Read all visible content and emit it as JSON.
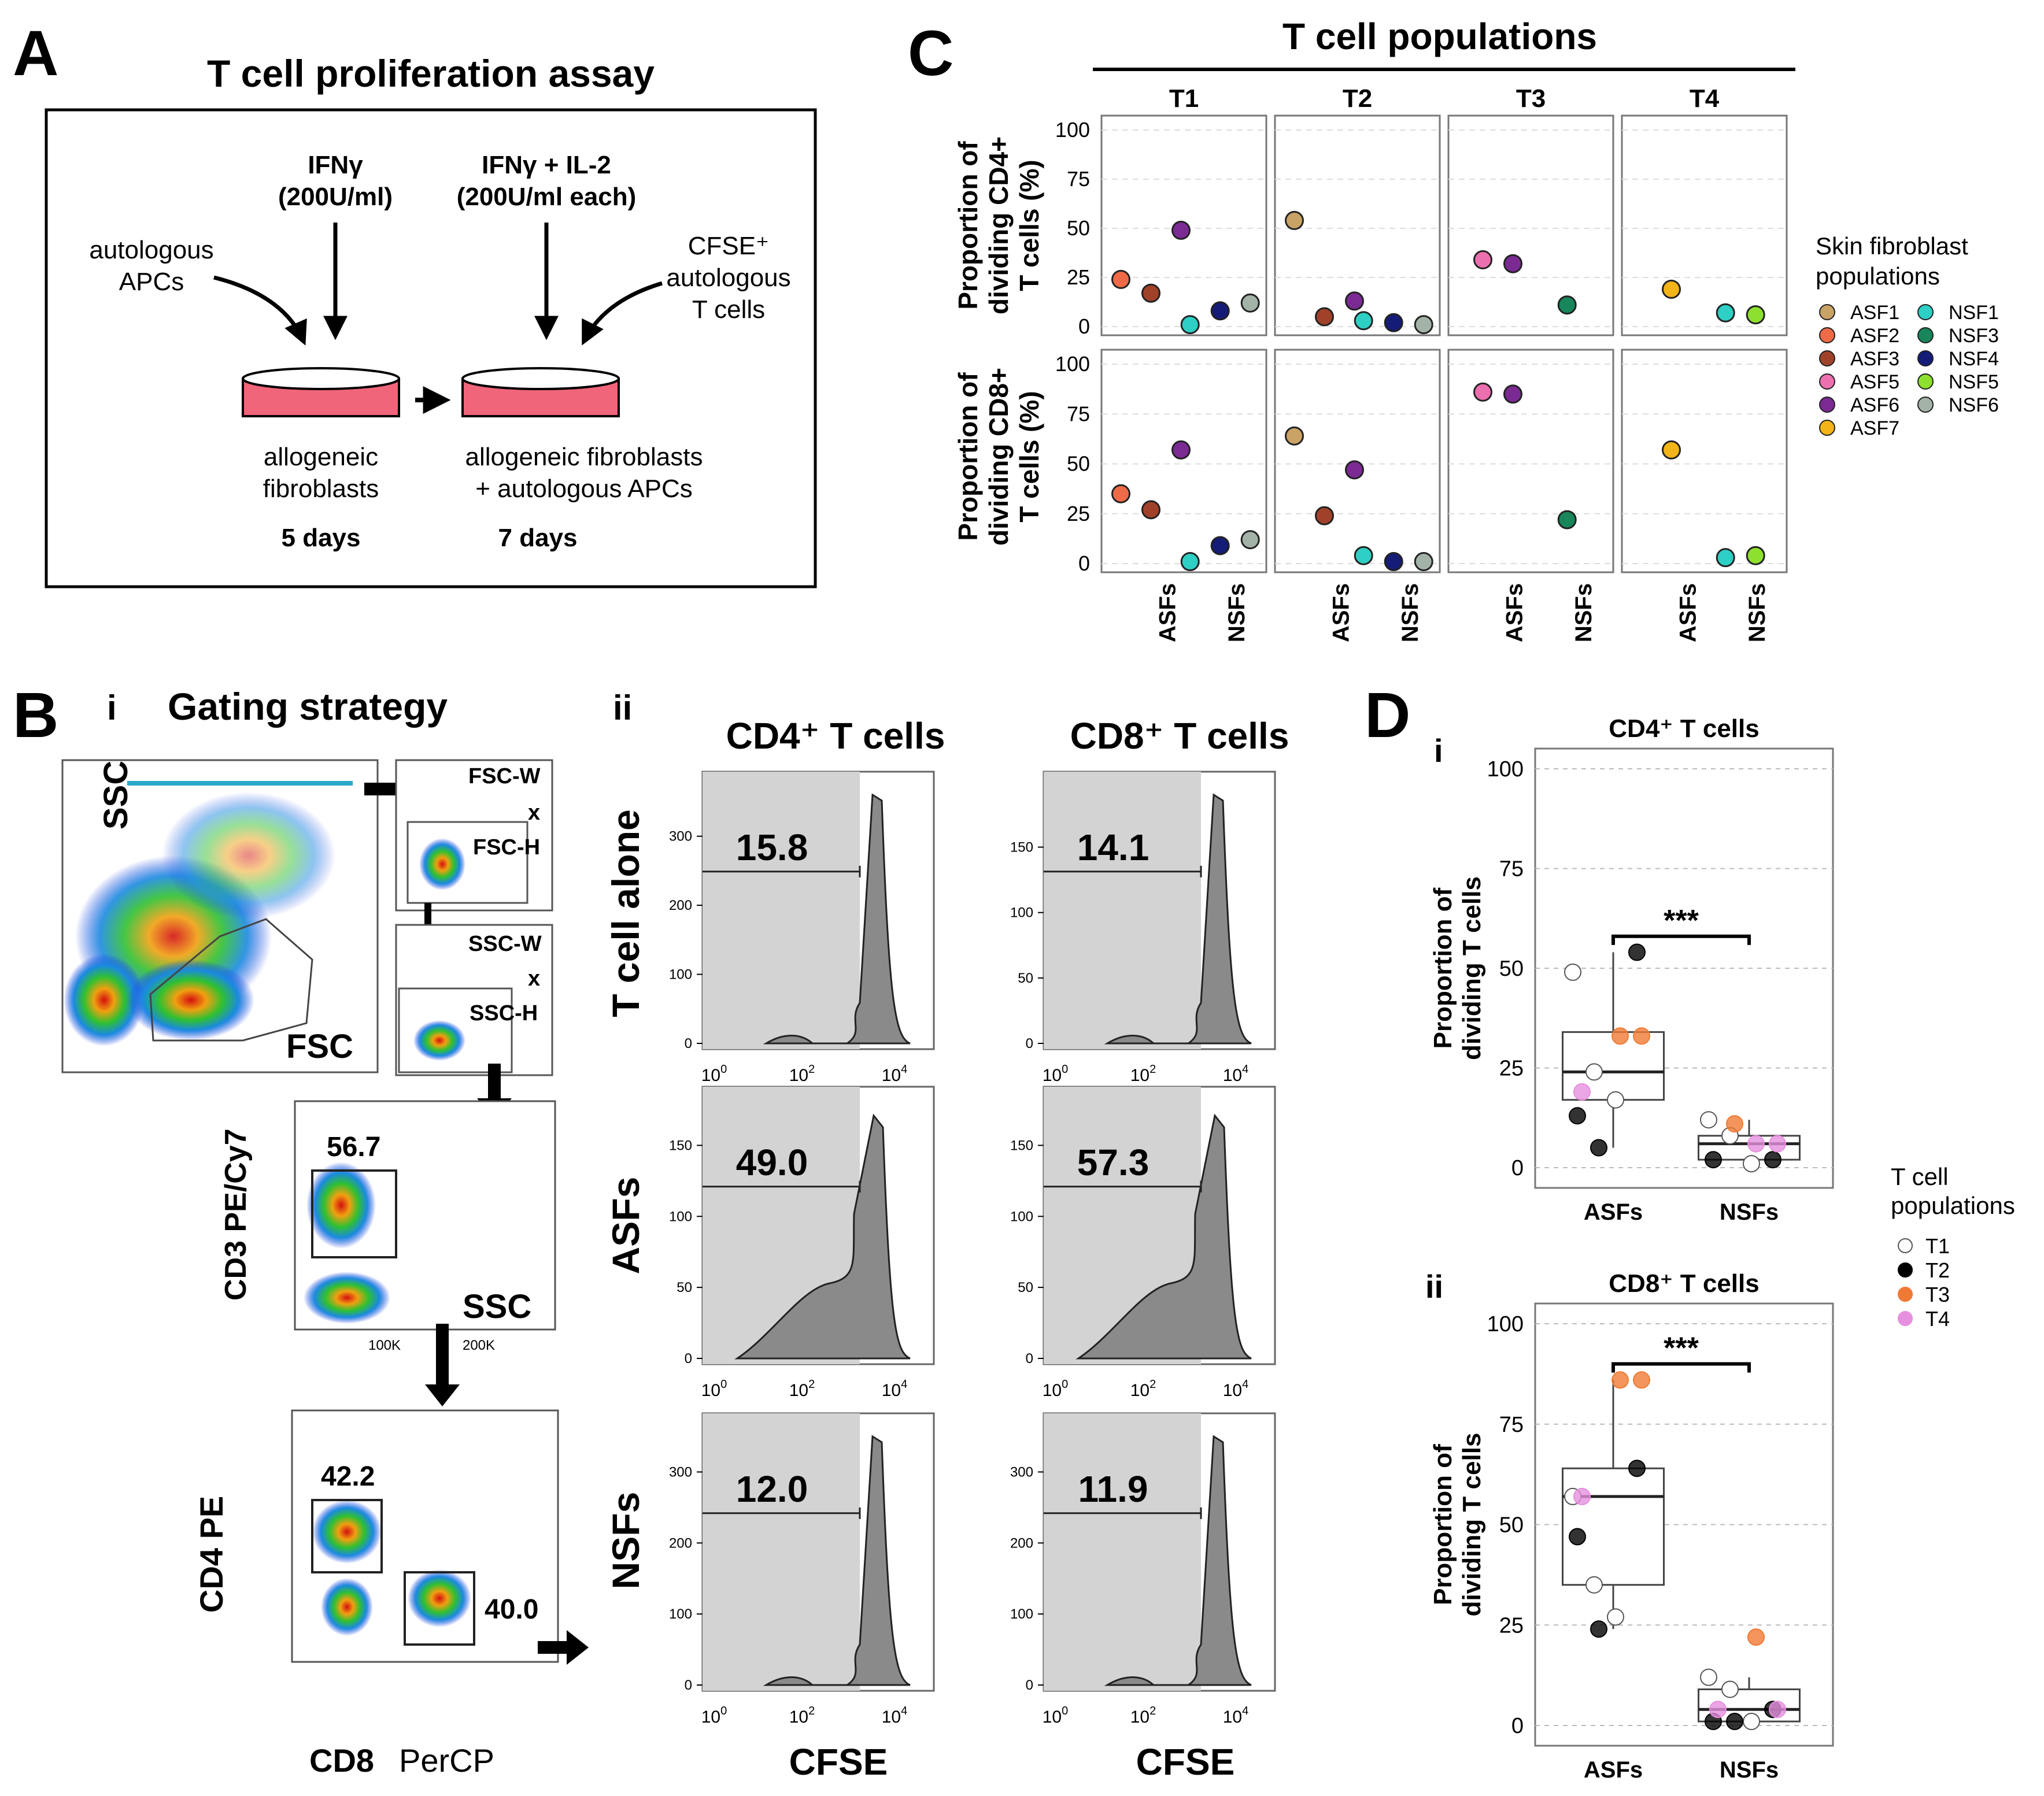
{
  "panelA": {
    "letter": "A",
    "title": "T cell proliferation assay",
    "ifng_line1": "IFNγ",
    "ifng_line2": "(200U/ml)",
    "ifng_il2_line1": "IFNγ + IL-2",
    "ifng_il2_line2": "(200U/ml each)",
    "apcs_line1": "autologous",
    "apcs_line2": "APCs",
    "cfse_line1": "CFSE⁺",
    "cfse_line2": "autologous",
    "cfse_line3": "T cells",
    "dish1_line1": "allogeneic",
    "dish1_line2": "fibroblasts",
    "dish2_line1": "allogeneic fibroblasts",
    "dish2_line2": "+ autologous APCs",
    "days1": "5 days",
    "days2": "7 days"
  },
  "panelB": {
    "letter": "B",
    "sub_i": "i",
    "sub_ii": "ii",
    "gating_title": "Gating strategy",
    "ssc": "SSC",
    "fsc": "FSC",
    "fscw": "FSC-W",
    "fsch": "FSC-H",
    "sscw": "SSC-W",
    "ssch": "SSC-H",
    "x": "x",
    "cd3_label": "CD3 PE/Cy7",
    "cd3_gate": "56.7",
    "ssc_axis": "SSC",
    "k100": "100K",
    "k200": "200K",
    "cd4_label": "CD4 PE",
    "cd8_label_bold": "CD8",
    "cd8_label_rest": "PerCP",
    "cd4_gate": "42.2",
    "cd8_gate": "40.0",
    "col_cd4": "CD4⁺ T cells",
    "col_cd8": "CD8⁺ T cells",
    "row_alone": "T cell alone",
    "row_asfs": "ASFs",
    "row_nsfs": "NSFs",
    "cfse": "CFSE",
    "hist_values": [
      "15.8",
      "14.1",
      "49.0",
      "57.3",
      "12.0",
      "11.9"
    ]
  },
  "panelC": {
    "letter": "C",
    "title": "T cell populations",
    "columns": [
      "T1",
      "T2",
      "T3",
      "T4"
    ],
    "ylab_cd4": [
      "Proportion of",
      "dividing CD4+",
      "T cells (%)"
    ],
    "ylab_cd8": [
      "Proportion of",
      "dividing CD8+",
      "T cells (%)"
    ],
    "xcats": [
      "ASFs",
      "NSFs"
    ],
    "legend_title": [
      "Skin fibroblast",
      "populations"
    ],
    "legend": [
      {
        "name": "ASF1",
        "color": "#c9a266"
      },
      {
        "name": "ASF2",
        "color": "#ef6a47"
      },
      {
        "name": "ASF3",
        "color": "#a0422a"
      },
      {
        "name": "ASF5",
        "color": "#ec6fb0"
      },
      {
        "name": "ASF6",
        "color": "#7b2a94"
      },
      {
        "name": "ASF7",
        "color": "#f2b418"
      },
      {
        "name": "NSF1",
        "color": "#2ecfc4"
      },
      {
        "name": "NSF3",
        "color": "#18855a"
      },
      {
        "name": "NSF4",
        "color": "#141c78"
      },
      {
        "name": "NSF5",
        "color": "#8ee02e"
      },
      {
        "name": "NSF6",
        "color": "#a3b3a8"
      }
    ]
  },
  "panelD": {
    "letter": "D",
    "sub_i": "i",
    "sub_ii": "ii",
    "title_cd4": "CD4⁺ T cells",
    "title_cd8": "CD8⁺ T cells",
    "ylab": [
      "Proportion of",
      "dividing T cells"
    ],
    "sig": "***",
    "xcats": [
      "ASFs",
      "NSFs"
    ],
    "legend_title": [
      "T cell",
      "populations"
    ],
    "legend": [
      {
        "name": "T1",
        "color": "#ffffff"
      },
      {
        "name": "T2",
        "color": "#000000"
      },
      {
        "name": "T3",
        "color": "#f07a35"
      },
      {
        "name": "T4",
        "color": "#e690df"
      }
    ]
  },
  "chart_data": [
    {
      "type": "scatter",
      "title": "T cell populations — Proportion of dividing CD4+ T cells (%)",
      "facets": [
        "T1",
        "T2",
        "T3",
        "T4"
      ],
      "categories": [
        "ASFs",
        "NSFs"
      ],
      "ylim": [
        0,
        100
      ],
      "yticks": [
        0,
        25,
        50,
        75,
        100
      ],
      "points": [
        {
          "facet": "T1",
          "cat": "ASFs",
          "fib": "ASF2",
          "y": 24
        },
        {
          "facet": "T1",
          "cat": "ASFs",
          "fib": "ASF3",
          "y": 17
        },
        {
          "facet": "T1",
          "cat": "ASFs",
          "fib": "ASF6",
          "y": 49
        },
        {
          "facet": "T1",
          "cat": "NSFs",
          "fib": "NSF1",
          "y": 1
        },
        {
          "facet": "T1",
          "cat": "NSFs",
          "fib": "NSF4",
          "y": 8
        },
        {
          "facet": "T1",
          "cat": "NSFs",
          "fib": "NSF6",
          "y": 12
        },
        {
          "facet": "T2",
          "cat": "ASFs",
          "fib": "ASF1",
          "y": 54
        },
        {
          "facet": "T2",
          "cat": "ASFs",
          "fib": "ASF3",
          "y": 5
        },
        {
          "facet": "T2",
          "cat": "ASFs",
          "fib": "ASF6",
          "y": 13
        },
        {
          "facet": "T2",
          "cat": "NSFs",
          "fib": "NSF1",
          "y": 3
        },
        {
          "facet": "T2",
          "cat": "NSFs",
          "fib": "NSF4",
          "y": 2
        },
        {
          "facet": "T2",
          "cat": "NSFs",
          "fib": "NSF6",
          "y": 1
        },
        {
          "facet": "T3",
          "cat": "ASFs",
          "fib": "ASF5",
          "y": 34
        },
        {
          "facet": "T3",
          "cat": "ASFs",
          "fib": "ASF6",
          "y": 32
        },
        {
          "facet": "T3",
          "cat": "NSFs",
          "fib": "NSF3",
          "y": 11
        },
        {
          "facet": "T4",
          "cat": "ASFs",
          "fib": "ASF7",
          "y": 19
        },
        {
          "facet": "T4",
          "cat": "NSFs",
          "fib": "NSF1",
          "y": 7
        },
        {
          "facet": "T4",
          "cat": "NSFs",
          "fib": "NSF5",
          "y": 6
        }
      ]
    },
    {
      "type": "scatter",
      "title": "T cell populations — Proportion of dividing CD8+ T cells (%)",
      "facets": [
        "T1",
        "T2",
        "T3",
        "T4"
      ],
      "categories": [
        "ASFs",
        "NSFs"
      ],
      "ylim": [
        0,
        100
      ],
      "yticks": [
        0,
        25,
        50,
        75,
        100
      ],
      "points": [
        {
          "facet": "T1",
          "cat": "ASFs",
          "fib": "ASF2",
          "y": 35
        },
        {
          "facet": "T1",
          "cat": "ASFs",
          "fib": "ASF3",
          "y": 27
        },
        {
          "facet": "T1",
          "cat": "ASFs",
          "fib": "ASF6",
          "y": 57
        },
        {
          "facet": "T1",
          "cat": "NSFs",
          "fib": "NSF1",
          "y": 1
        },
        {
          "facet": "T1",
          "cat": "NSFs",
          "fib": "NSF4",
          "y": 9
        },
        {
          "facet": "T1",
          "cat": "NSFs",
          "fib": "NSF6",
          "y": 12
        },
        {
          "facet": "T2",
          "cat": "ASFs",
          "fib": "ASF1",
          "y": 64
        },
        {
          "facet": "T2",
          "cat": "ASFs",
          "fib": "ASF3",
          "y": 24
        },
        {
          "facet": "T2",
          "cat": "ASFs",
          "fib": "ASF6",
          "y": 47
        },
        {
          "facet": "T2",
          "cat": "NSFs",
          "fib": "NSF1",
          "y": 4
        },
        {
          "facet": "T2",
          "cat": "NSFs",
          "fib": "NSF4",
          "y": 1
        },
        {
          "facet": "T2",
          "cat": "NSFs",
          "fib": "NSF6",
          "y": 1
        },
        {
          "facet": "T3",
          "cat": "ASFs",
          "fib": "ASF5",
          "y": 86
        },
        {
          "facet": "T3",
          "cat": "ASFs",
          "fib": "ASF6",
          "y": 85
        },
        {
          "facet": "T3",
          "cat": "NSFs",
          "fib": "NSF3",
          "y": 22
        },
        {
          "facet": "T4",
          "cat": "ASFs",
          "fib": "ASF7",
          "y": 57
        },
        {
          "facet": "T4",
          "cat": "NSFs",
          "fib": "NSF1",
          "y": 3
        },
        {
          "facet": "T4",
          "cat": "NSFs",
          "fib": "NSF5",
          "y": 4
        }
      ]
    },
    {
      "type": "box",
      "title": "CD4⁺ T cells",
      "ylabel": "Proportion of dividing T cells",
      "categories": [
        "ASFs",
        "NSFs"
      ],
      "ylim": [
        0,
        100
      ],
      "yticks": [
        0,
        25,
        50,
        75,
        100
      ],
      "boxes": [
        {
          "cat": "ASFs",
          "q1": 17,
          "median": 24,
          "q3": 34,
          "whisker_low": 5,
          "whisker_high": 54
        },
        {
          "cat": "NSFs",
          "q1": 2,
          "median": 6,
          "q3": 8,
          "whisker_low": 1,
          "whisker_high": 12
        }
      ],
      "points": [
        {
          "cat": "ASFs",
          "pop": "T1",
          "y": 49
        },
        {
          "cat": "ASFs",
          "pop": "T1",
          "y": 24
        },
        {
          "cat": "ASFs",
          "pop": "T1",
          "y": 17
        },
        {
          "cat": "ASFs",
          "pop": "T2",
          "y": 54
        },
        {
          "cat": "ASFs",
          "pop": "T2",
          "y": 13
        },
        {
          "cat": "ASFs",
          "pop": "T2",
          "y": 5
        },
        {
          "cat": "ASFs",
          "pop": "T3",
          "y": 33
        },
        {
          "cat": "ASFs",
          "pop": "T3",
          "y": 33
        },
        {
          "cat": "ASFs",
          "pop": "T4",
          "y": 19
        },
        {
          "cat": "NSFs",
          "pop": "T1",
          "y": 12
        },
        {
          "cat": "NSFs",
          "pop": "T1",
          "y": 8
        },
        {
          "cat": "NSFs",
          "pop": "T1",
          "y": 1
        },
        {
          "cat": "NSFs",
          "pop": "T2",
          "y": 2
        },
        {
          "cat": "NSFs",
          "pop": "T2",
          "y": 2
        },
        {
          "cat": "NSFs",
          "pop": "T3",
          "y": 11
        },
        {
          "cat": "NSFs",
          "pop": "T4",
          "y": 6
        },
        {
          "cat": "NSFs",
          "pop": "T4",
          "y": 6
        }
      ],
      "significance": "***"
    },
    {
      "type": "box",
      "title": "CD8⁺ T cells",
      "ylabel": "Proportion of dividing T cells",
      "categories": [
        "ASFs",
        "NSFs"
      ],
      "ylim": [
        0,
        100
      ],
      "yticks": [
        0,
        25,
        50,
        75,
        100
      ],
      "boxes": [
        {
          "cat": "ASFs",
          "q1": 35,
          "median": 57,
          "q3": 64,
          "whisker_low": 24,
          "whisker_high": 86
        },
        {
          "cat": "NSFs",
          "q1": 1,
          "median": 4,
          "q3": 9,
          "whisker_low": 1,
          "whisker_high": 12
        }
      ],
      "points": [
        {
          "cat": "ASFs",
          "pop": "T1",
          "y": 57
        },
        {
          "cat": "ASFs",
          "pop": "T1",
          "y": 35
        },
        {
          "cat": "ASFs",
          "pop": "T1",
          "y": 27
        },
        {
          "cat": "ASFs",
          "pop": "T2",
          "y": 64
        },
        {
          "cat": "ASFs",
          "pop": "T2",
          "y": 47
        },
        {
          "cat": "ASFs",
          "pop": "T2",
          "y": 24
        },
        {
          "cat": "ASFs",
          "pop": "T3",
          "y": 86
        },
        {
          "cat": "ASFs",
          "pop": "T3",
          "y": 86
        },
        {
          "cat": "ASFs",
          "pop": "T4",
          "y": 57
        },
        {
          "cat": "NSFs",
          "pop": "T1",
          "y": 12
        },
        {
          "cat": "NSFs",
          "pop": "T1",
          "y": 9
        },
        {
          "cat": "NSFs",
          "pop": "T1",
          "y": 1
        },
        {
          "cat": "NSFs",
          "pop": "T2",
          "y": 4
        },
        {
          "cat": "NSFs",
          "pop": "T2",
          "y": 1
        },
        {
          "cat": "NSFs",
          "pop": "T2",
          "y": 1
        },
        {
          "cat": "NSFs",
          "pop": "T3",
          "y": 22
        },
        {
          "cat": "NSFs",
          "pop": "T4",
          "y": 4
        },
        {
          "cat": "NSFs",
          "pop": "T4",
          "y": 4
        }
      ],
      "significance": "***"
    }
  ]
}
